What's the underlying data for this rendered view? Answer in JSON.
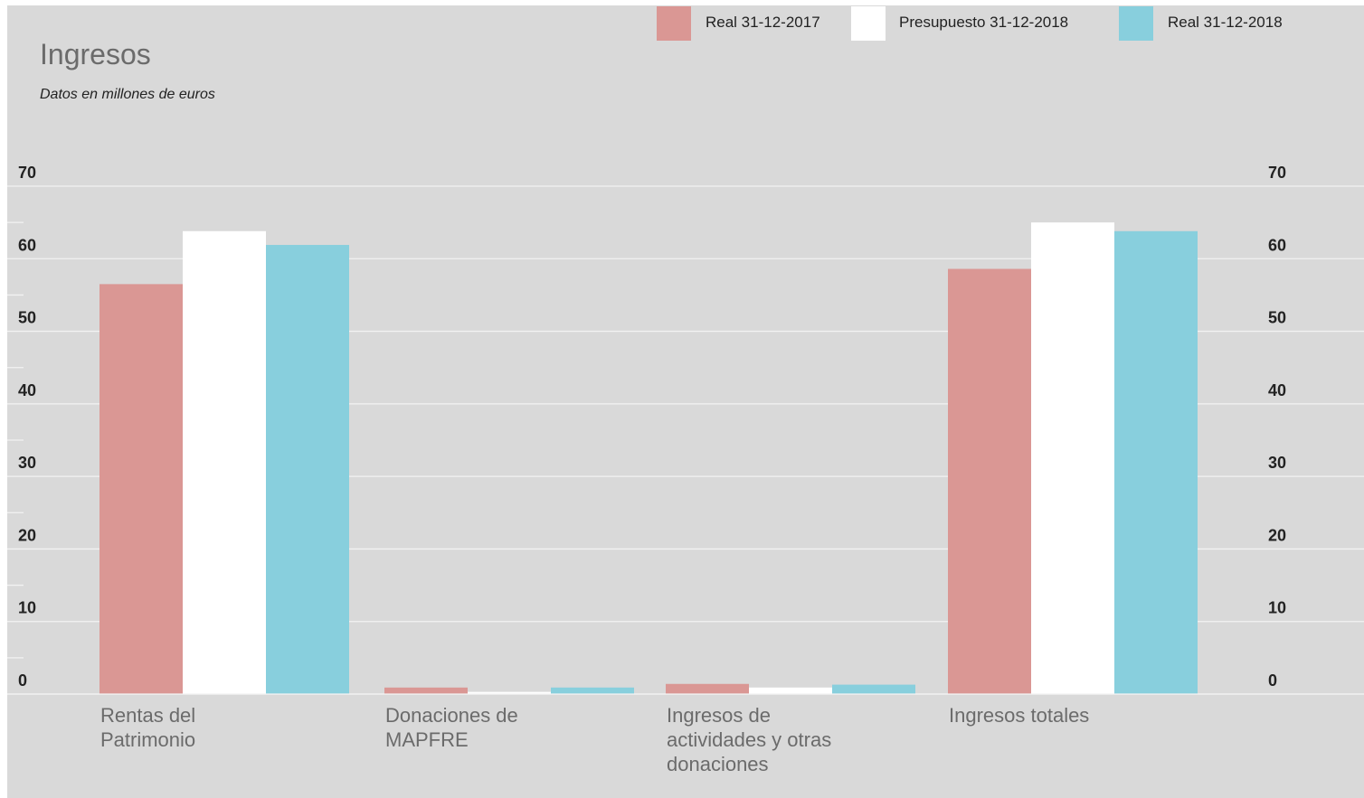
{
  "title": "Ingresos",
  "subtitle": "Datos en millones de euros",
  "colors": {
    "background": "#d9d9d9",
    "real_2017": "#da9794",
    "presupuesto_2018": "#ffffff",
    "real_2018": "#88cfdd",
    "gridline": "#f2f2f2"
  },
  "legend": [
    {
      "label": "Real 31-12-2017",
      "color": "#da9794"
    },
    {
      "label": "Presupuesto 31-12-2018",
      "color": "#ffffff"
    },
    {
      "label": "Real 31-12-2018",
      "color": "#88cfdd"
    }
  ],
  "chart_data": {
    "type": "bar",
    "title": "Ingresos",
    "subtitle": "Datos en millones de euros",
    "xlabel": "",
    "ylabel": "",
    "ylim": [
      0,
      70
    ],
    "yticks": [
      0,
      10,
      20,
      30,
      40,
      50,
      60,
      70
    ],
    "grid": true,
    "legend_position": "top-right",
    "categories": [
      "Rentas del Patrimonio",
      "Donaciones de MAPFRE",
      "Ingresos de actividades y otras donaciones",
      "Ingresos totales"
    ],
    "series": [
      {
        "name": "Real 31-12-2017",
        "values": [
          56.5,
          0.9,
          1.4,
          58.6
        ]
      },
      {
        "name": "Presupuesto 31-12-2018",
        "values": [
          63.8,
          0.3,
          0.9,
          65.0
        ]
      },
      {
        "name": "Real 31-12-2018",
        "values": [
          61.9,
          0.9,
          1.3,
          63.8
        ]
      }
    ]
  }
}
